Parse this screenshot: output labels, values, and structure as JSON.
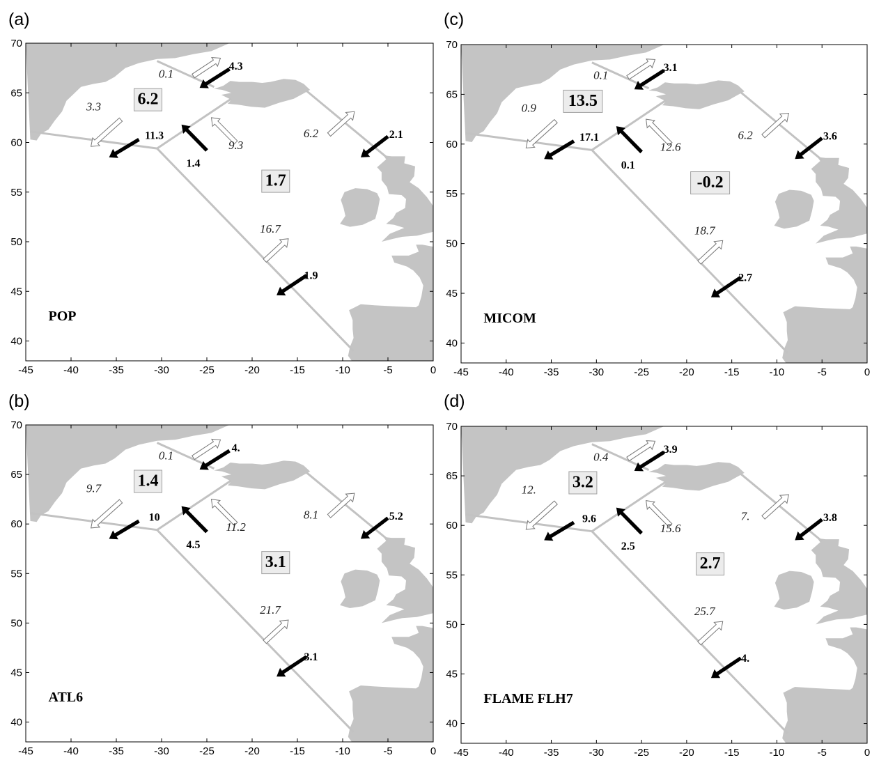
{
  "lon_ticks": [
    "-45",
    "-40",
    "-35",
    "-30",
    "-25",
    "-20",
    "-15",
    "-10",
    "-5",
    "0"
  ],
  "lat_ticks": [
    "40",
    "45",
    "50",
    "55",
    "60",
    "65",
    "70"
  ],
  "colors": {
    "land": "#c4c4c4",
    "section": "#c2c2c2",
    "box": "#ececec",
    "arrow_black": "#000000",
    "arrow_hollow": "#ffffff"
  },
  "map_extent": {
    "lon": [
      -45,
      0
    ],
    "lat": [
      38,
      70
    ]
  },
  "panels": [
    {
      "letter": "(a)",
      "model": "POP",
      "box_upper": "6.2",
      "box_lower": "1.7",
      "denmark_strait": {
        "out": "0.1",
        "in": "4.3"
      },
      "west": {
        "out": "3.3",
        "in": "11.3"
      },
      "irminger": {
        "out": "9.3",
        "in": "1.4"
      },
      "iceland_scotland": {
        "out": "6.2",
        "in": "2.1"
      },
      "south": {
        "out": "16.7",
        "in": "1.9"
      }
    },
    {
      "letter": "(c)",
      "model": "MICOM",
      "box_upper": "13.5",
      "box_lower": "-0.2",
      "denmark_strait": {
        "out": "0.1",
        "in": "3.1"
      },
      "west": {
        "out": "0.9",
        "in": "17.1"
      },
      "irminger": {
        "out": "12.6",
        "in": "0.1"
      },
      "iceland_scotland": {
        "out": "6.2",
        "in": "3.6"
      },
      "south": {
        "out": "18.7",
        "in": "2.7"
      }
    },
    {
      "letter": "(b)",
      "model": "ATL6",
      "box_upper": "1.4",
      "box_lower": "3.1",
      "denmark_strait": {
        "out": "0.1",
        "in": "4."
      },
      "west": {
        "out": "9.7",
        "in": "10"
      },
      "irminger": {
        "out": "11.2",
        "in": "4.5"
      },
      "iceland_scotland": {
        "out": "8.1",
        "in": "5.2"
      },
      "south": {
        "out": "21.7",
        "in": "3.1"
      }
    },
    {
      "letter": "(d)",
      "model": "FLAME FLH7",
      "box_upper": "3.2",
      "box_lower": "2.7",
      "denmark_strait": {
        "out": "0.4",
        "in": "3.9"
      },
      "west": {
        "out": "12.",
        "in": "9.6"
      },
      "irminger": {
        "out": "15.6",
        "in": "2.5"
      },
      "iceland_scotland": {
        "out": "7.",
        "in": "3.8"
      },
      "south": {
        "out": "25.7",
        "in": "4."
      }
    }
  ]
}
